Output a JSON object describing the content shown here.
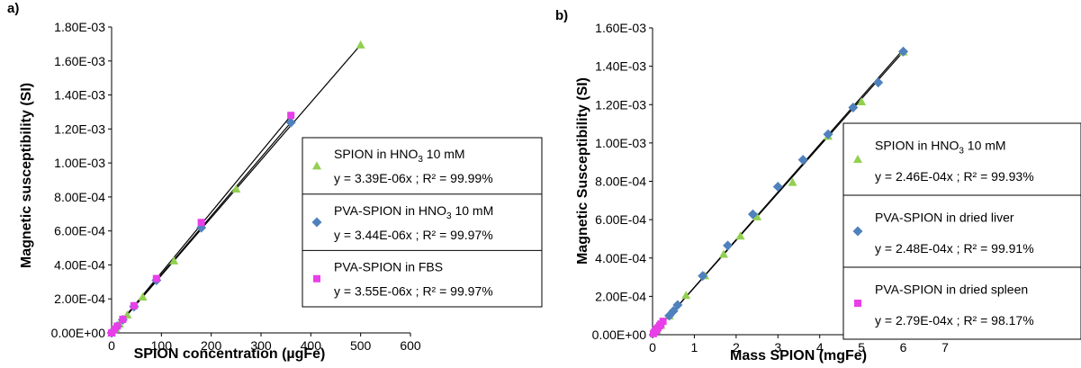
{
  "chart_data": [
    {
      "panel_label": "a)",
      "type": "scatter",
      "xlabel": "SPION concentration (µgFe)",
      "ylabel": "Magnetic susceptibility (SI)",
      "xlim": [
        0,
        600
      ],
      "ylim": [
        0,
        0.0018
      ],
      "x_ticks": [
        "0",
        "100",
        "200",
        "300",
        "400",
        "500",
        "600"
      ],
      "y_ticks": [
        "0.00E+00",
        "2.00E-04",
        "4.00E-04",
        "6.00E-04",
        "8.00E-04",
        "1.00E-03",
        "1.20E-03",
        "1.40E-03",
        "1.60E-03",
        "1.80E-03"
      ],
      "legend_position": "right",
      "series": [
        {
          "name": "SPION in HNO3 10 mM",
          "equation": "y = 3.39E-06x ; R² = 99.99%",
          "marker": "triangle",
          "color": "#92D050",
          "slope": 3.39e-06,
          "points": [
            [
              0,
              0
            ],
            [
              7.8,
              2.64e-05
            ],
            [
              15.6,
              5.29e-05
            ],
            [
              31.3,
              0.000106
            ],
            [
              62.5,
              0.000212
            ],
            [
              125,
              0.000424
            ],
            [
              250,
              0.000847
            ],
            [
              500,
              0.001695
            ]
          ]
        },
        {
          "name": "PVA-SPION in HNO3 10 mM",
          "equation": "y = 3.44E-06x ; R² = 99.97%",
          "marker": "diamond",
          "color": "#4F81BD",
          "slope": 3.44e-06,
          "points": [
            [
              0,
              0
            ],
            [
              5.6,
              1.93e-05
            ],
            [
              11.3,
              3.89e-05
            ],
            [
              22.5,
              7.74e-05
            ],
            [
              45,
              0.000155
            ],
            [
              90,
              0.00031
            ],
            [
              180,
              0.000619
            ],
            [
              360,
              0.001238
            ]
          ]
        },
        {
          "name": "PVA-SPION in FBS",
          "equation": "y = 3.55E-06x ; R² = 99.97%",
          "marker": "square",
          "color": "#E83FE8",
          "slope": 3.55e-06,
          "points": [
            [
              0,
              0
            ],
            [
              5.6,
              2e-05
            ],
            [
              11.3,
              4e-05
            ],
            [
              22.5,
              8e-05
            ],
            [
              45,
              0.00016
            ],
            [
              90,
              0.00032
            ],
            [
              180,
              0.00065
            ],
            [
              360,
              0.00128
            ]
          ]
        }
      ]
    },
    {
      "panel_label": "b)",
      "type": "scatter",
      "xlabel": "Mass SPION (mgFe)",
      "ylabel": "Magnetic  Susceptibility (SI)",
      "xlim": [
        0,
        7
      ],
      "ylim": [
        0,
        0.0016
      ],
      "x_ticks": [
        "0",
        "1",
        "2",
        "3",
        "4",
        "5",
        "6",
        "7"
      ],
      "y_ticks": [
        "0.00E+00",
        "2.00E-04",
        "4.00E-04",
        "6.00E-04",
        "8.00E-04",
        "1.00E-03",
        "1.20E-03",
        "1.40E-03",
        "1.60E-03"
      ],
      "legend_position": "right",
      "series": [
        {
          "name": "SPION in HNO3 10 mM",
          "equation": "y = 2.46E-04x ; R² = 99.93%",
          "marker": "triangle",
          "color": "#92D050",
          "slope": 0.000246,
          "points": [
            [
              0.1,
              2.46e-05
            ],
            [
              0.2,
              4.92e-05
            ],
            [
              0.4,
              9.84e-05
            ],
            [
              0.8,
              0.000205
            ],
            [
              1.25,
              0.000308
            ],
            [
              1.7,
              0.00042
            ],
            [
              2.1,
              0.000515
            ],
            [
              2.5,
              0.000615
            ],
            [
              3.35,
              0.000795
            ],
            [
              4.2,
              0.001035
            ],
            [
              5.0,
              0.001215
            ],
            [
              6.0,
              0.001475
            ]
          ]
        },
        {
          "name": "PVA-SPION in dried liver",
          "equation": "y = 2.48E-04x ; R² = 99.91%",
          "marker": "diamond",
          "color": "#4F81BD",
          "slope": 0.000248,
          "points": [
            [
              0.4,
              9.92e-05
            ],
            [
              0.5,
              0.000124
            ],
            [
              0.6,
              0.000155
            ],
            [
              1.2,
              0.000307
            ],
            [
              1.8,
              0.000465
            ],
            [
              2.4,
              0.000628
            ],
            [
              3.0,
              0.000772
            ],
            [
              3.6,
              0.000912
            ],
            [
              4.2,
              0.001045
            ],
            [
              4.8,
              0.001185
            ],
            [
              5.4,
              0.001315
            ],
            [
              6.0,
              0.001477
            ]
          ]
        },
        {
          "name": "PVA-SPION in dried spleen",
          "equation": "y = 2.79E-04x ; R² = 98.17%",
          "marker": "square",
          "color": "#E83FE8",
          "slope": 0.000279,
          "points": [
            [
              0.02,
              5.6e-06
            ],
            [
              0.05,
              1.4e-05
            ],
            [
              0.08,
              2.23e-05
            ],
            [
              0.1,
              2.79e-05
            ],
            [
              0.13,
              3.63e-05
            ],
            [
              0.17,
              4.74e-05
            ],
            [
              0.2,
              5.58e-05
            ],
            [
              0.25,
              6.98e-05
            ]
          ]
        }
      ]
    }
  ]
}
